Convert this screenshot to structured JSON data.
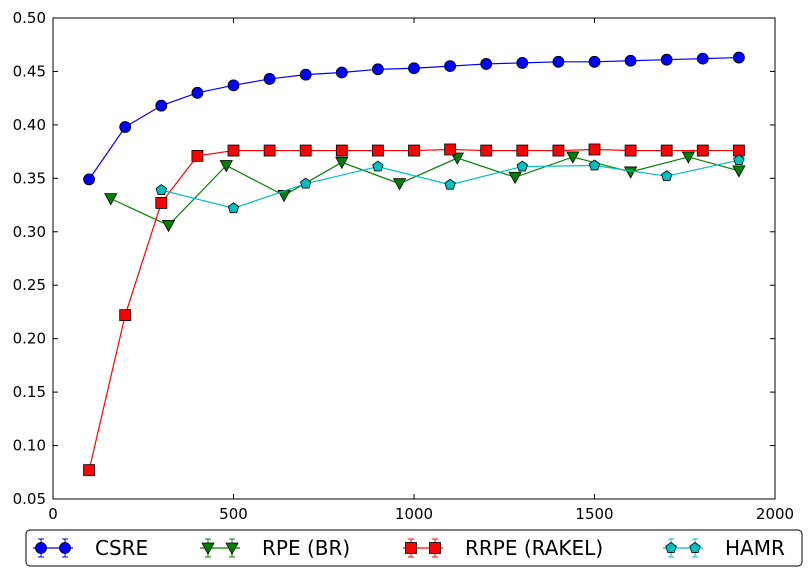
{
  "chart_data": {
    "type": "line",
    "title": "",
    "xlabel": "",
    "ylabel": "",
    "xlim": [
      0,
      2000
    ],
    "ylim": [
      0.05,
      0.5
    ],
    "xticks": [
      0,
      500,
      1000,
      1500,
      2000
    ],
    "yticks": [
      0.05,
      0.1,
      0.15,
      0.2,
      0.25,
      0.3,
      0.35,
      0.4,
      0.45,
      0.5
    ],
    "xtick_labels": [
      "0",
      "500",
      "1000",
      "1500",
      "2000"
    ],
    "ytick_labels": [
      "0.05",
      "0.10",
      "0.15",
      "0.20",
      "0.25",
      "0.30",
      "0.35",
      "0.40",
      "0.45",
      "0.50"
    ],
    "grid": false,
    "legend_position": "bottom",
    "series": [
      {
        "name": "CSRE",
        "color": "#0000ff",
        "marker": "circle",
        "x": [
          100,
          200,
          300,
          400,
          500,
          600,
          700,
          800,
          900,
          1000,
          1100,
          1200,
          1300,
          1400,
          1500,
          1600,
          1700,
          1800,
          1900
        ],
        "values": [
          0.349,
          0.398,
          0.418,
          0.43,
          0.437,
          0.443,
          0.447,
          0.449,
          0.452,
          0.453,
          0.455,
          0.457,
          0.458,
          0.459,
          0.459,
          0.46,
          0.461,
          0.462,
          0.463
        ]
      },
      {
        "name": "RPE (BR)",
        "color": "#008000",
        "marker": "triangle-down",
        "x": [
          160,
          320,
          480,
          640,
          800,
          960,
          1120,
          1280,
          1440,
          1600,
          1760,
          1900
        ],
        "values": [
          0.331,
          0.306,
          0.362,
          0.334,
          0.365,
          0.345,
          0.369,
          0.351,
          0.37,
          0.356,
          0.37,
          0.357
        ]
      },
      {
        "name": "RRPE (RAKEL)",
        "color": "#ff0000",
        "marker": "square",
        "x": [
          100,
          200,
          300,
          400,
          500,
          600,
          700,
          800,
          900,
          1000,
          1100,
          1200,
          1300,
          1400,
          1500,
          1600,
          1700,
          1800,
          1900
        ],
        "values": [
          0.077,
          0.222,
          0.327,
          0.371,
          0.376,
          0.376,
          0.376,
          0.376,
          0.376,
          0.376,
          0.377,
          0.376,
          0.376,
          0.376,
          0.377,
          0.376,
          0.376,
          0.376,
          0.376
        ]
      },
      {
        "name": "HAMR",
        "color": "#00bfbf",
        "marker": "pentagon",
        "x": [
          300,
          500,
          700,
          900,
          1100,
          1300,
          1500,
          1700,
          1900
        ],
        "values": [
          0.339,
          0.322,
          0.345,
          0.361,
          0.344,
          0.361,
          0.362,
          0.352,
          0.367
        ]
      }
    ]
  }
}
